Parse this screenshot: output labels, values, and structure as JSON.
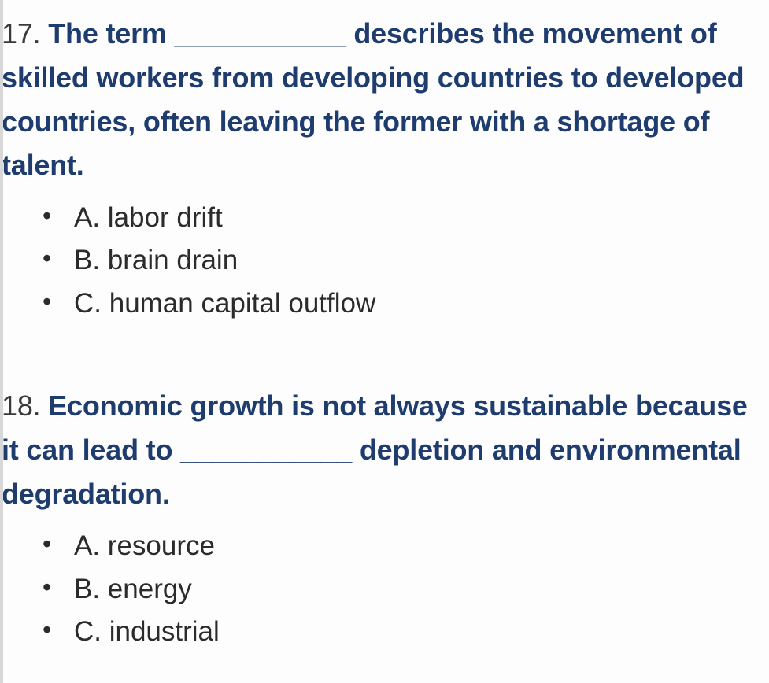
{
  "questions": [
    {
      "number": "17.",
      "text": "The term ___________ describes the movement of skilled workers from developing countries to developed countries, often leaving the former with a shortage of talent.",
      "options": [
        "A. labor drift",
        "B. brain drain",
        "C. human capital outflow"
      ]
    },
    {
      "number": "18.",
      "text": "Economic growth is not always sustainable because it can lead to ___________ depletion and environmental degradation.",
      "options": [
        "A. resource",
        "B. energy",
        "C. industrial"
      ]
    }
  ],
  "styling": {
    "question_color": "#1f3c6e",
    "number_color": "#3a3a3a",
    "option_color": "#2b2b2b",
    "background_color": "#fdfdfd",
    "question_fontsize": 36,
    "option_fontsize": 35,
    "question_fontweight": "bold",
    "left_border_color": "#d8d8d8"
  }
}
